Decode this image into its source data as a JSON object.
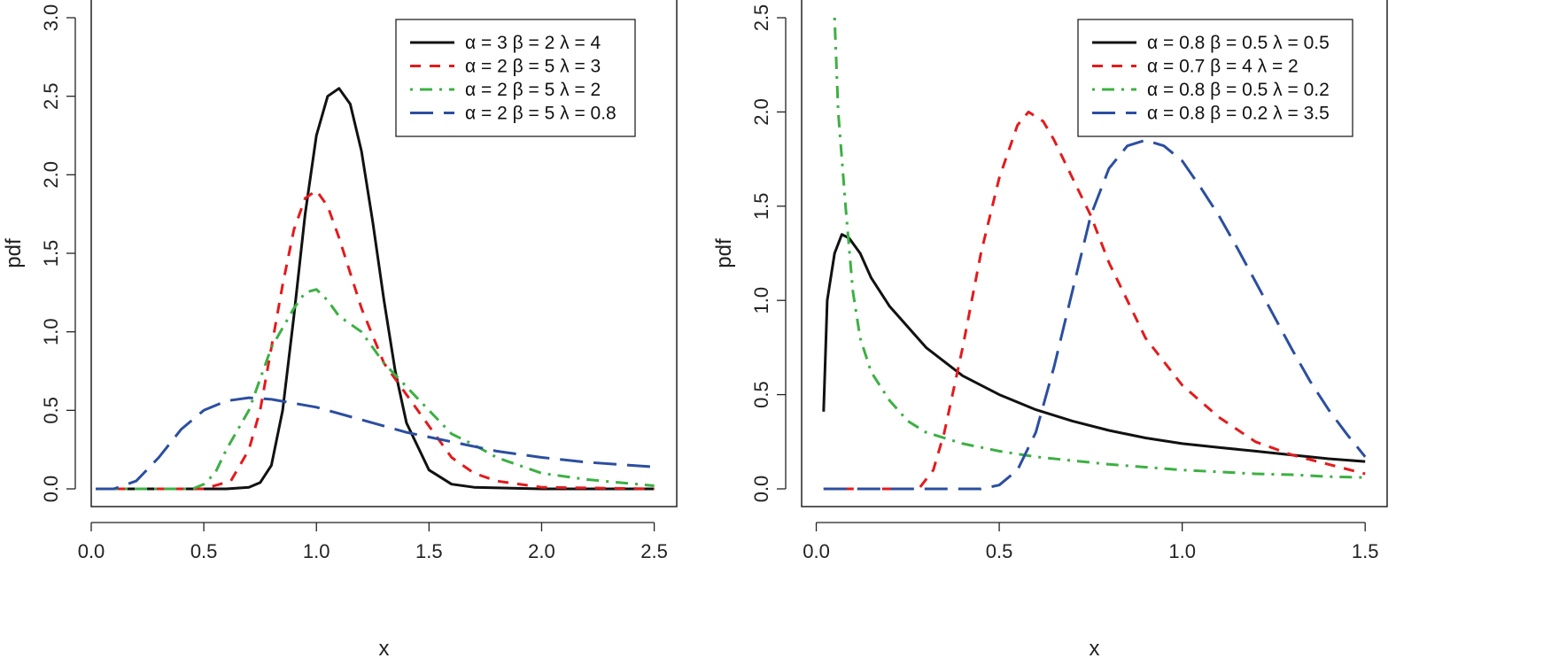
{
  "chart_data": [
    {
      "type": "line",
      "title": "",
      "xlabel": "x",
      "ylabel": "pdf",
      "xlim": [
        0,
        2.6
      ],
      "ylim": [
        0,
        3.0
      ],
      "xticks": [
        "0.0",
        "0.5",
        "1.0",
        "1.5",
        "2.0",
        "2.5"
      ],
      "yticks": [
        "0.0",
        "0.5",
        "1.0",
        "1.5",
        "2.0",
        "2.5",
        "3.0"
      ],
      "legend_position": "top-right",
      "series": [
        {
          "name": "α = 3  β = 2  λ = 4",
          "color": "#111111",
          "dash": "solid",
          "points": [
            [
              0.02,
              0
            ],
            [
              0.6,
              0
            ],
            [
              0.7,
              0.01
            ],
            [
              0.75,
              0.04
            ],
            [
              0.8,
              0.15
            ],
            [
              0.85,
              0.5
            ],
            [
              0.9,
              1.1
            ],
            [
              0.95,
              1.75
            ],
            [
              1.0,
              2.25
            ],
            [
              1.05,
              2.5
            ],
            [
              1.1,
              2.55
            ],
            [
              1.15,
              2.45
            ],
            [
              1.2,
              2.15
            ],
            [
              1.25,
              1.7
            ],
            [
              1.3,
              1.2
            ],
            [
              1.35,
              0.75
            ],
            [
              1.4,
              0.42
            ],
            [
              1.5,
              0.12
            ],
            [
              1.6,
              0.03
            ],
            [
              1.7,
              0.01
            ],
            [
              2.0,
              0
            ],
            [
              2.5,
              0
            ]
          ]
        },
        {
          "name": "α = 2  β = 5  λ = 3",
          "color": "#e41a1c",
          "dash": "short-dash",
          "points": [
            [
              0.02,
              0
            ],
            [
              0.5,
              0
            ],
            [
              0.62,
              0.05
            ],
            [
              0.7,
              0.25
            ],
            [
              0.75,
              0.5
            ],
            [
              0.8,
              0.9
            ],
            [
              0.85,
              1.3
            ],
            [
              0.9,
              1.65
            ],
            [
              0.95,
              1.85
            ],
            [
              1.0,
              1.9
            ],
            [
              1.05,
              1.8
            ],
            [
              1.1,
              1.6
            ],
            [
              1.2,
              1.15
            ],
            [
              1.3,
              0.8
            ],
            [
              1.4,
              0.6
            ],
            [
              1.5,
              0.4
            ],
            [
              1.6,
              0.2
            ],
            [
              1.7,
              0.1
            ],
            [
              1.8,
              0.05
            ],
            [
              2.0,
              0.01
            ],
            [
              2.5,
              0
            ]
          ]
        },
        {
          "name": "α = 2  β = 5  λ = 2",
          "color": "#3cb043",
          "dash": "dot-dash",
          "points": [
            [
              0.02,
              0
            ],
            [
              0.45,
              0
            ],
            [
              0.5,
              0.03
            ],
            [
              0.55,
              0.1
            ],
            [
              0.6,
              0.25
            ],
            [
              0.7,
              0.5
            ],
            [
              0.75,
              0.7
            ],
            [
              0.8,
              0.9
            ],
            [
              0.9,
              1.15
            ],
            [
              0.95,
              1.25
            ],
            [
              1.0,
              1.27
            ],
            [
              1.05,
              1.2
            ],
            [
              1.1,
              1.1
            ],
            [
              1.2,
              1.0
            ],
            [
              1.3,
              0.8
            ],
            [
              1.4,
              0.65
            ],
            [
              1.5,
              0.5
            ],
            [
              1.6,
              0.35
            ],
            [
              1.7,
              0.28
            ],
            [
              1.8,
              0.2
            ],
            [
              2.0,
              0.1
            ],
            [
              2.2,
              0.06
            ],
            [
              2.5,
              0.02
            ]
          ]
        },
        {
          "name": "α = 2  β = 5  λ = 0.8",
          "color": "#2b4ea0",
          "dash": "long-dash",
          "points": [
            [
              0.02,
              0
            ],
            [
              0.1,
              0
            ],
            [
              0.2,
              0.05
            ],
            [
              0.3,
              0.2
            ],
            [
              0.4,
              0.38
            ],
            [
              0.5,
              0.5
            ],
            [
              0.6,
              0.56
            ],
            [
              0.7,
              0.58
            ],
            [
              0.8,
              0.57
            ],
            [
              1.0,
              0.52
            ],
            [
              1.2,
              0.44
            ],
            [
              1.4,
              0.36
            ],
            [
              1.6,
              0.3
            ],
            [
              1.8,
              0.24
            ],
            [
              2.0,
              0.2
            ],
            [
              2.2,
              0.17
            ],
            [
              2.5,
              0.14
            ]
          ]
        }
      ]
    },
    {
      "type": "line",
      "title": "",
      "xlabel": "x",
      "ylabel": "pdf",
      "xlim": [
        -0.04,
        1.56
      ],
      "ylim": [
        0,
        2.5
      ],
      "xticks": [
        "0.0",
        "0.5",
        "1.0",
        "1.5"
      ],
      "yticks": [
        "0.0",
        "0.5",
        "1.0",
        "1.5",
        "2.0",
        "2.5"
      ],
      "legend_position": "top-right",
      "series": [
        {
          "name": "α = 0.8  β = 0.5  λ = 0.5",
          "color": "#111111",
          "dash": "solid",
          "points": [
            [
              0.02,
              0.41
            ],
            [
              0.03,
              1.0
            ],
            [
              0.05,
              1.25
            ],
            [
              0.07,
              1.35
            ],
            [
              0.09,
              1.33
            ],
            [
              0.12,
              1.25
            ],
            [
              0.15,
              1.12
            ],
            [
              0.2,
              0.97
            ],
            [
              0.3,
              0.75
            ],
            [
              0.4,
              0.6
            ],
            [
              0.5,
              0.5
            ],
            [
              0.6,
              0.42
            ],
            [
              0.7,
              0.36
            ],
            [
              0.8,
              0.31
            ],
            [
              0.9,
              0.27
            ],
            [
              1.0,
              0.24
            ],
            [
              1.1,
              0.22
            ],
            [
              1.2,
              0.2
            ],
            [
              1.3,
              0.18
            ],
            [
              1.4,
              0.16
            ],
            [
              1.5,
              0.145
            ]
          ]
        },
        {
          "name": "α = 0.7  β = 4  λ = 2",
          "color": "#e41a1c",
          "dash": "short-dash",
          "points": [
            [
              0.02,
              0
            ],
            [
              0.28,
              0
            ],
            [
              0.32,
              0.1
            ],
            [
              0.35,
              0.3
            ],
            [
              0.4,
              0.75
            ],
            [
              0.45,
              1.25
            ],
            [
              0.5,
              1.65
            ],
            [
              0.55,
              1.93
            ],
            [
              0.58,
              2.0
            ],
            [
              0.62,
              1.95
            ],
            [
              0.65,
              1.85
            ],
            [
              0.7,
              1.65
            ],
            [
              0.75,
              1.45
            ],
            [
              0.8,
              1.2
            ],
            [
              0.85,
              1.0
            ],
            [
              0.9,
              0.8
            ],
            [
              1.0,
              0.55
            ],
            [
              1.1,
              0.38
            ],
            [
              1.2,
              0.25
            ],
            [
              1.3,
              0.18
            ],
            [
              1.4,
              0.13
            ],
            [
              1.5,
              0.08
            ]
          ]
        },
        {
          "name": "α = 0.8  β = 0.5  λ = 0.2",
          "color": "#3cb043",
          "dash": "dot-dash",
          "points": [
            [
              0.05,
              2.5
            ],
            [
              0.06,
              2.0
            ],
            [
              0.08,
              1.5
            ],
            [
              0.1,
              1.05
            ],
            [
              0.12,
              0.8
            ],
            [
              0.15,
              0.62
            ],
            [
              0.2,
              0.47
            ],
            [
              0.25,
              0.36
            ],
            [
              0.3,
              0.3
            ],
            [
              0.4,
              0.24
            ],
            [
              0.5,
              0.2
            ],
            [
              0.6,
              0.17
            ],
            [
              0.7,
              0.15
            ],
            [
              0.8,
              0.13
            ],
            [
              0.9,
              0.115
            ],
            [
              1.0,
              0.1
            ],
            [
              1.1,
              0.09
            ],
            [
              1.2,
              0.08
            ],
            [
              1.3,
              0.075
            ],
            [
              1.4,
              0.065
            ],
            [
              1.5,
              0.06
            ]
          ]
        },
        {
          "name": "α = 0.8  β = 0.2  λ = 3.5",
          "color": "#2b4ea0",
          "dash": "long-dash",
          "points": [
            [
              0.02,
              0
            ],
            [
              0.45,
              0
            ],
            [
              0.5,
              0.02
            ],
            [
              0.55,
              0.1
            ],
            [
              0.6,
              0.3
            ],
            [
              0.65,
              0.65
            ],
            [
              0.7,
              1.05
            ],
            [
              0.75,
              1.45
            ],
            [
              0.8,
              1.7
            ],
            [
              0.85,
              1.82
            ],
            [
              0.9,
              1.85
            ],
            [
              0.95,
              1.82
            ],
            [
              1.0,
              1.74
            ],
            [
              1.05,
              1.6
            ],
            [
              1.1,
              1.45
            ],
            [
              1.15,
              1.28
            ],
            [
              1.2,
              1.1
            ],
            [
              1.25,
              0.92
            ],
            [
              1.3,
              0.74
            ],
            [
              1.35,
              0.57
            ],
            [
              1.4,
              0.42
            ],
            [
              1.45,
              0.29
            ],
            [
              1.5,
              0.17
            ]
          ]
        }
      ]
    }
  ]
}
